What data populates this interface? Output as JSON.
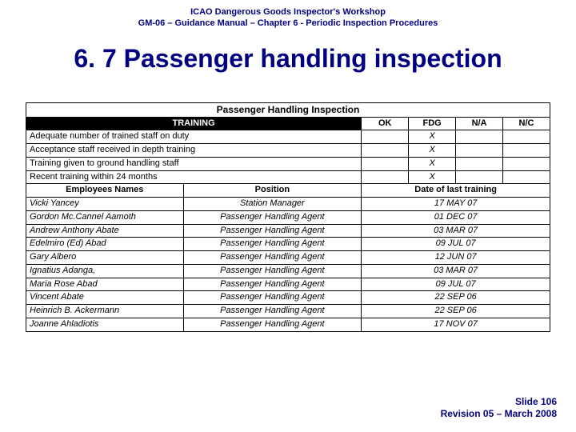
{
  "header": {
    "line1": "ICAO Dangerous Goods Inspector's Workshop",
    "line2": "GM-06 – Guidance Manual – Chapter 6 - Periodic Inspection Procedures"
  },
  "title": "6. 7 Passenger handling inspection",
  "table": {
    "inspection_title": "Passenger Handling Inspection",
    "training_label": "TRAINING",
    "cols": {
      "ok": "OK",
      "fdg": "FDG",
      "na": "N/A",
      "nc": "N/C"
    },
    "checks": [
      {
        "desc": "Adequate number of trained staff on duty",
        "ok": "",
        "fdg": "X",
        "na": "",
        "nc": ""
      },
      {
        "desc": "Acceptance staff received in depth training",
        "ok": "",
        "fdg": "X",
        "na": "",
        "nc": ""
      },
      {
        "desc": "Training given to ground handling staff",
        "ok": "",
        "fdg": "X",
        "na": "",
        "nc": ""
      },
      {
        "desc": "Recent training within 24 months",
        "ok": "",
        "fdg": "X",
        "na": "",
        "nc": ""
      }
    ],
    "sub": {
      "emp": "Employees Names",
      "pos": "Position",
      "date": "Date of last training"
    },
    "employees": [
      {
        "name": "Vicki Yancey",
        "pos": "Station Manager",
        "date": "17 MAY 07"
      },
      {
        "name": "Gordon Mc.Cannel Aamoth",
        "pos": "Passenger Handling Agent",
        "date": "01 DEC 07"
      },
      {
        "name": "Andrew Anthony Abate",
        "pos": "Passenger Handling Agent",
        "date": "03 MAR 07"
      },
      {
        "name": "Edelmiro (Ed) Abad",
        "pos": "Passenger Handling Agent",
        "date": "09 JUL 07"
      },
      {
        "name": "Gary Albero",
        "pos": "Passenger Handling Agent",
        "date": "12 JUN 07"
      },
      {
        "name": "Ignatius Adanga,",
        "pos": "Passenger Handling Agent",
        "date": "03 MAR 07"
      },
      {
        "name": "Maria Rose Abad",
        "pos": "Passenger Handling Agent",
        "date": "09 JUL 07"
      },
      {
        "name": "Vincent Abate",
        "pos": "Passenger Handling Agent",
        "date": "22 SEP 06"
      },
      {
        "name": "Heinrich B. Ackermann",
        "pos": "Passenger Handling Agent",
        "date": "22 SEP 06"
      },
      {
        "name": "Joanne Ahladiotis",
        "pos": "Passenger Handling Agent",
        "date": "17 NOV 07"
      }
    ]
  },
  "footer": {
    "line1": "Slide 106",
    "line2": "Revision 05 – March 2008"
  },
  "colors": {
    "brand": "#000080",
    "black": "#000000",
    "white": "#ffffff"
  }
}
